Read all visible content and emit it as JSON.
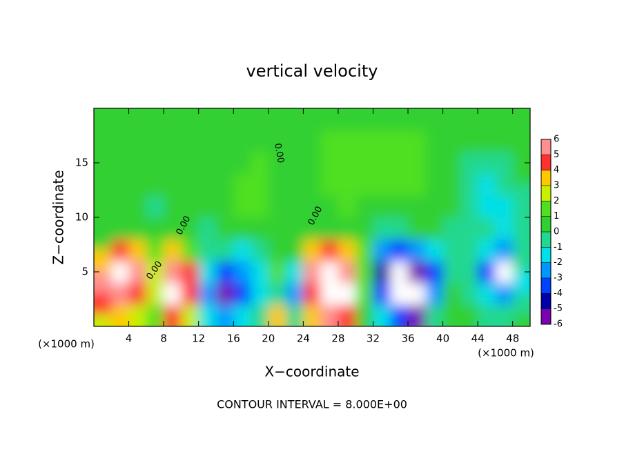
{
  "chart_data": {
    "type": "contour",
    "title": "vertical velocity",
    "x_label": "X−coordinate",
    "y_label": "Z−coordinate",
    "x_unit": "(×1000 m)",
    "y_unit": "(×1000 m)",
    "footer": "CONTOUR INTERVAL = 8.000E+00",
    "contour_labels": [
      "0.00",
      "0.00",
      "0.00",
      "0.00"
    ],
    "x": [
      1,
      3,
      5,
      7,
      9,
      11,
      13,
      15,
      17,
      19,
      21,
      23,
      25,
      27,
      29,
      31,
      33,
      35,
      37,
      39,
      41,
      43,
      45,
      47,
      49
    ],
    "y": [
      1,
      3,
      5,
      7,
      9,
      11,
      13,
      15,
      17,
      19
    ],
    "z": [
      [
        2,
        3,
        2,
        1,
        4,
        2,
        -2,
        -3,
        -2,
        -1,
        3,
        -1,
        3,
        5,
        4,
        0,
        -2,
        -4,
        -6,
        -1,
        0,
        0,
        -1,
        -1,
        0
      ],
      [
        4,
        6,
        4,
        2,
        7,
        4,
        -3,
        -6,
        -4,
        -2,
        -1,
        -3,
        4,
        9,
        7,
        1,
        -4,
        -7,
        -7,
        -3,
        0,
        -1,
        -2,
        -3,
        -1
      ],
      [
        5,
        8,
        5,
        2,
        6,
        4,
        -2,
        -4,
        -3,
        -2,
        1,
        -2,
        5,
        9,
        6,
        1,
        -5,
        -8,
        -6,
        -4,
        -1,
        -1,
        -4,
        -7,
        -2
      ],
      [
        3,
        4,
        3,
        1,
        3,
        1,
        -1,
        -1,
        -2,
        -1,
        0,
        0,
        3,
        4,
        3,
        1,
        -3,
        -4,
        -3,
        -2,
        -1,
        -1,
        -2,
        -3,
        -1
      ],
      [
        0,
        0,
        0,
        0,
        0,
        0,
        -0.5,
        0,
        0.5,
        0,
        0,
        0,
        0.5,
        0.5,
        0.5,
        0,
        -1,
        -1,
        0,
        0,
        -0.5,
        -0.5,
        -1,
        -1.5,
        -0.5
      ],
      [
        0.5,
        0,
        0,
        -0.5,
        0,
        0,
        0,
        0.5,
        1,
        1,
        0.5,
        0.5,
        0.5,
        0.5,
        1,
        0.5,
        0,
        0.5,
        0.5,
        0,
        0,
        -1,
        -2,
        -2,
        -1
      ],
      [
        0.5,
        0.5,
        0.5,
        0,
        0,
        0.5,
        0.5,
        0.5,
        1,
        1,
        0.5,
        0.5,
        0.5,
        1,
        1,
        1.5,
        1.5,
        1,
        1,
        0.5,
        0,
        -0.5,
        -1.5,
        -1,
        -0.5
      ],
      [
        0.5,
        0.5,
        0.5,
        0.5,
        0.5,
        0.5,
        0.5,
        0.5,
        0.5,
        1,
        0.5,
        0.5,
        0.5,
        1,
        1,
        1.5,
        1.5,
        1,
        1,
        0.5,
        0,
        -0.5,
        -1,
        -0.5,
        0
      ],
      [
        0.5,
        0.5,
        0.5,
        0.5,
        0.5,
        0.5,
        0.5,
        0.5,
        0.5,
        0.5,
        0.5,
        0.5,
        0.5,
        1,
        1,
        1,
        1,
        1,
        1,
        0.5,
        0.5,
        0,
        0,
        0,
        0
      ],
      [
        0.5,
        0.5,
        0.5,
        0.5,
        0.5,
        0.5,
        0.5,
        0.5,
        0.5,
        0.5,
        0.5,
        0.5,
        0.5,
        0.5,
        0.5,
        0.5,
        0.5,
        0.5,
        0.5,
        0.5,
        0.5,
        0,
        0,
        0,
        0
      ]
    ],
    "xlim": [
      0,
      50
    ],
    "ylim": [
      0,
      20
    ],
    "xticks": [
      4,
      8,
      12,
      16,
      20,
      24,
      28,
      32,
      36,
      40,
      44,
      48
    ],
    "yticks": [
      5,
      10,
      15
    ],
    "colorbar_ticks": [
      -6,
      -5,
      -4,
      -3,
      -2,
      -1,
      0,
      1,
      2,
      3,
      4,
      5,
      6
    ],
    "colorbar_colors": [
      "#7a00b0",
      "#0000a8",
      "#0040ff",
      "#0098ff",
      "#00e0e8",
      "#20d890",
      "#30d030",
      "#50e020",
      "#c8f000",
      "#ffc800",
      "#ff3030",
      "#ff8f8f"
    ],
    "out_of_range_color": "#ffffff"
  }
}
